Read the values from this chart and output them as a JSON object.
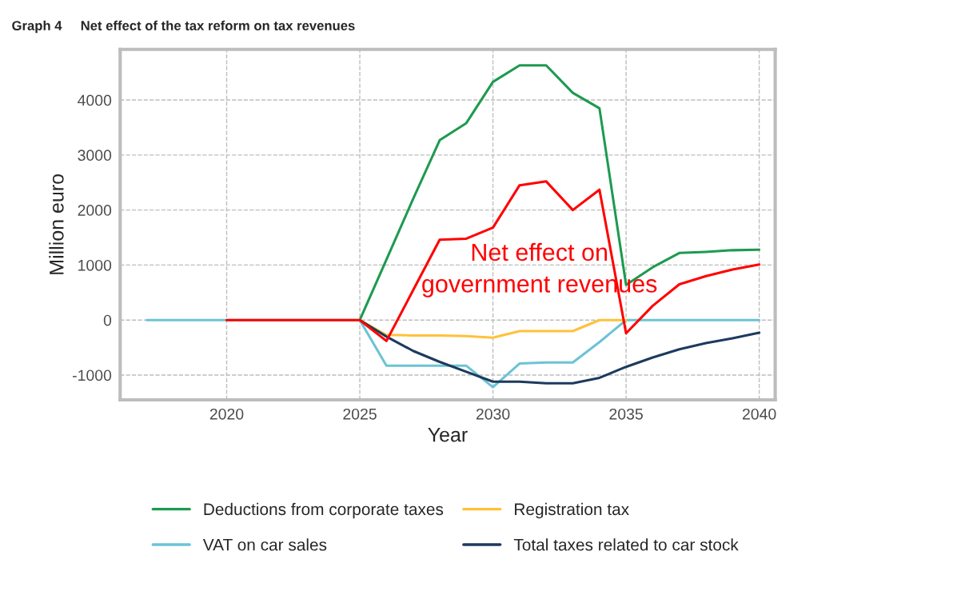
{
  "chart_data": {
    "type": "line",
    "title": "Graph 4     Net effect of the tax reform on tax revenues",
    "xlabel": "Year",
    "ylabel": "Million euro",
    "xlim": [
      2016,
      2040.6
    ],
    "xticks": [
      2020,
      2025,
      2030,
      2035,
      2040
    ],
    "ylim": [
      -1450,
      4920
    ],
    "yticks": [
      -1000,
      0,
      1000,
      2000,
      3000,
      4000
    ],
    "grid": true,
    "legend": "bottom",
    "annotations": [
      "Net effect on\ngovernment revenues"
    ],
    "series": [
      {
        "name": "Deductions from corporate taxes",
        "color": "#1e9a50",
        "x": [
          2025,
          2026,
          2027,
          2028,
          2029,
          2030,
          2031,
          2032,
          2033,
          2034,
          2035,
          2036,
          2037,
          2038,
          2039,
          2040
        ],
        "values": [
          0,
          1100,
          2200,
          3270,
          3580,
          4330,
          4630,
          4630,
          4130,
          3850,
          640,
          960,
          1220,
          1240,
          1270,
          1280
        ]
      },
      {
        "name": "VAT on car sales",
        "color": "#6cc3d5",
        "x": [
          2017,
          2018,
          2019,
          2020,
          2021,
          2022,
          2023,
          2024,
          2025,
          2026,
          2027,
          2028,
          2029,
          2030,
          2031,
          2032,
          2033,
          2034,
          2035,
          2036,
          2037,
          2038,
          2039,
          2040
        ],
        "values": [
          0,
          0,
          0,
          0,
          0,
          0,
          0,
          0,
          0,
          -830,
          -830,
          -830,
          -830,
          -1220,
          -790,
          -770,
          -770,
          -400,
          0,
          0,
          0,
          0,
          0,
          0
        ]
      },
      {
        "name": "Registration tax",
        "color": "#ffc13b",
        "x": [
          2025,
          2026,
          2027,
          2028,
          2029,
          2030,
          2031,
          2032,
          2033,
          2034,
          2035
        ],
        "values": [
          0,
          -270,
          -280,
          -280,
          -290,
          -320,
          -200,
          -200,
          -200,
          0,
          0
        ]
      },
      {
        "name": "Total taxes related to car stock",
        "color": "#1c3a5e",
        "x": [
          2025,
          2026,
          2027,
          2028,
          2029,
          2030,
          2031,
          2032,
          2033,
          2034,
          2035,
          2036,
          2037,
          2038,
          2039,
          2040
        ],
        "values": [
          0,
          -300,
          -560,
          -760,
          -940,
          -1120,
          -1120,
          -1150,
          -1150,
          -1050,
          -850,
          -680,
          -530,
          -420,
          -330,
          -230
        ]
      },
      {
        "color": "#ff0000",
        "x": [
          2020,
          2021,
          2022,
          2023,
          2024,
          2025,
          2026,
          2027,
          2028,
          2029,
          2030,
          2031,
          2032,
          2033,
          2034,
          2035,
          2036,
          2037,
          2038,
          2039,
          2040
        ],
        "values": [
          0,
          0,
          0,
          0,
          0,
          0,
          -380,
          540,
          1460,
          1480,
          1680,
          2450,
          2520,
          2000,
          2370,
          -240,
          260,
          650,
          800,
          920,
          1010
        ]
      }
    ]
  }
}
